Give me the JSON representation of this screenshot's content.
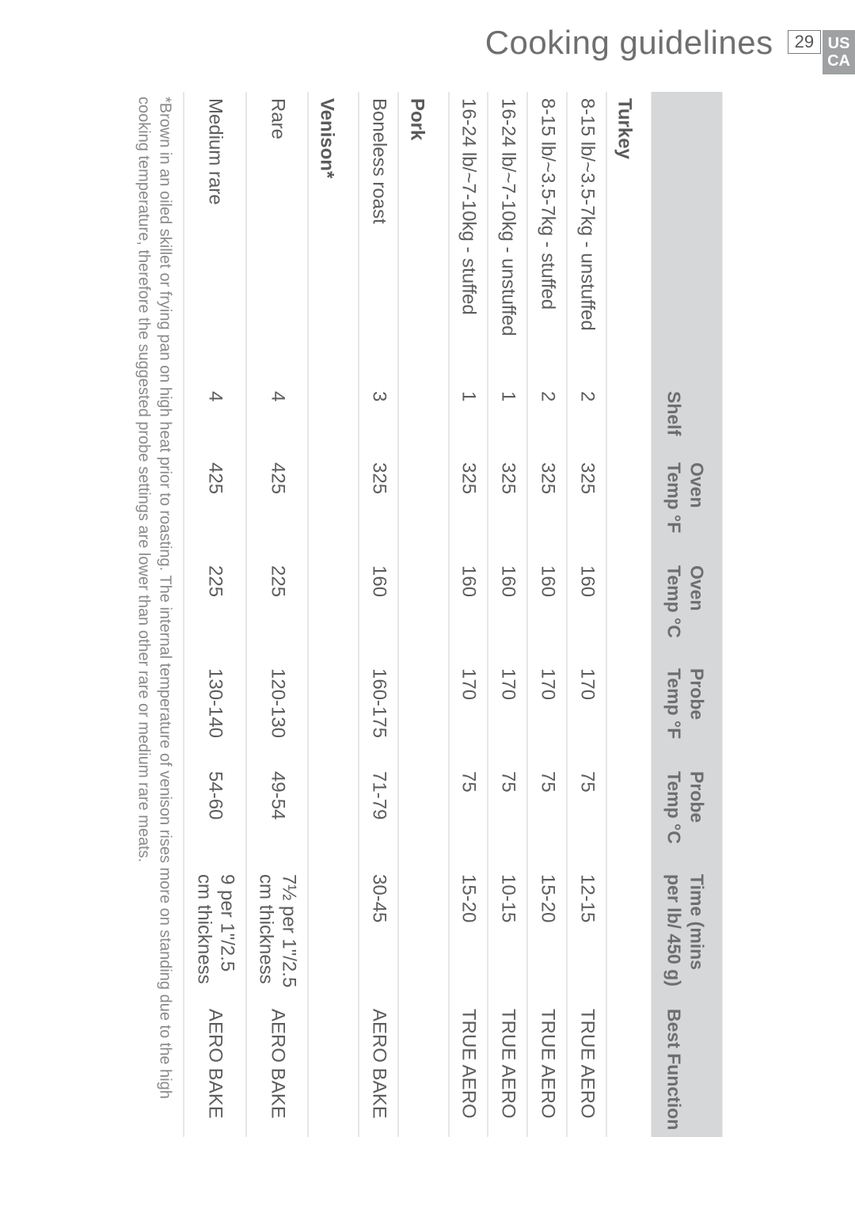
{
  "header": {
    "title": "Cooking guidelines",
    "page_number": "29",
    "regions": [
      "US",
      "CA"
    ]
  },
  "table": {
    "columns": {
      "item": "",
      "shelf": "Shelf",
      "oven_f": "Oven Temp °F",
      "oven_c": "Oven Temp °C",
      "probe_f": "Probe Temp °F",
      "probe_c": "Probe Temp °C",
      "time": "Time (mins per lb/ 450 g)",
      "func": "Best Function"
    },
    "sections": [
      {
        "heading": "Turkey",
        "rows": [
          {
            "item": "8-15 lb/~3.5-7kg - unstuffed",
            "shelf": "2",
            "oven_f": "325",
            "oven_c": "160",
            "probe_f": "170",
            "probe_c": "75",
            "time": "12-15",
            "func": "TRUE AERO"
          },
          {
            "item": "8-15 lb/~3.5-7kg - stuffed",
            "shelf": "2",
            "oven_f": "325",
            "oven_c": "160",
            "probe_f": "170",
            "probe_c": "75",
            "time": "15-20",
            "func": "TRUE AERO"
          },
          {
            "item": "16-24 lb/~7-10kg - unstuffed",
            "shelf": "1",
            "oven_f": "325",
            "oven_c": "160",
            "probe_f": "170",
            "probe_c": "75",
            "time": "10-15",
            "func": "TRUE AERO"
          },
          {
            "item": "16-24 lb/~7-10kg - stuffed",
            "shelf": "1",
            "oven_f": "325",
            "oven_c": "160",
            "probe_f": "170",
            "probe_c": "75",
            "time": "15-20",
            "func": "TRUE AERO"
          }
        ]
      },
      {
        "heading": "Pork",
        "rows": [
          {
            "item": "Boneless roast",
            "shelf": "3",
            "oven_f": "325",
            "oven_c": "160",
            "probe_f": "160-175",
            "probe_c": "71-79",
            "time": "30-45",
            "func": "AERO BAKE"
          }
        ]
      },
      {
        "heading": "Venison*",
        "rows": [
          {
            "item": "Rare",
            "shelf": "4",
            "oven_f": "425",
            "oven_c": "225",
            "probe_f": "120-130",
            "probe_c": "49-54",
            "time": "7½ per 1\"/2.5 cm thickness",
            "func": "AERO BAKE"
          },
          {
            "item": "Medium rare",
            "shelf": "4",
            "oven_f": "425",
            "oven_c": "225",
            "probe_f": "130-140",
            "probe_c": "54-60",
            "time": "9 per 1\"/2.5 cm thickness",
            "func": "AERO BAKE"
          }
        ]
      }
    ]
  },
  "footnote": "*Brown in an oiled skillet or frying pan on high heat prior to roasting. The internal temperature of venison rises more on standing due to the high cooking temperature, therefore the suggested probe settings are lower than other rare or medium rare meats.",
  "colors": {
    "header_bg": "#d6d7d8",
    "header_text": "#6d6e70",
    "body_text": "#5d5d5d",
    "rule": "#cfcfcf",
    "title_text": "#6f6f6f",
    "region_tab_bg": "#9fa1a3"
  }
}
